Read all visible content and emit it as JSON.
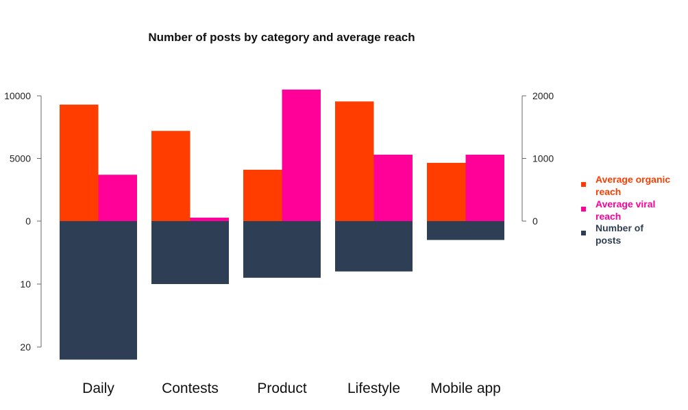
{
  "chart_data": {
    "type": "bar",
    "title": "Number of posts by category and average reach",
    "categories": [
      "Daily",
      "Contests",
      "Product",
      "Lifestyle",
      "Mobile app"
    ],
    "series": [
      {
        "name": "Average organic reach",
        "axis": "left-top",
        "color": "#ff3d00",
        "values": [
          9300,
          7200,
          4100,
          9550,
          4650
        ]
      },
      {
        "name": "Average viral reach",
        "axis": "right",
        "color": "#ff0099",
        "values": [
          740,
          55,
          2100,
          1060,
          1060
        ]
      },
      {
        "name": "Number of posts",
        "axis": "left-bottom",
        "color": "#2e3e55",
        "values": [
          22,
          10,
          9,
          8,
          3
        ]
      }
    ],
    "left_axis_top": {
      "ticks": [
        0,
        5000,
        10000
      ],
      "range": [
        0,
        10000
      ]
    },
    "left_axis_bottom": {
      "ticks": [
        10,
        20
      ],
      "range": [
        0,
        20
      ]
    },
    "right_axis": {
      "ticks": [
        0,
        1000,
        2000
      ],
      "range": [
        0,
        2000
      ]
    },
    "legend": {
      "placement": "right",
      "labels": [
        "Average organic reach",
        "Average viral reach",
        "Number of posts"
      ]
    },
    "grid": false
  }
}
